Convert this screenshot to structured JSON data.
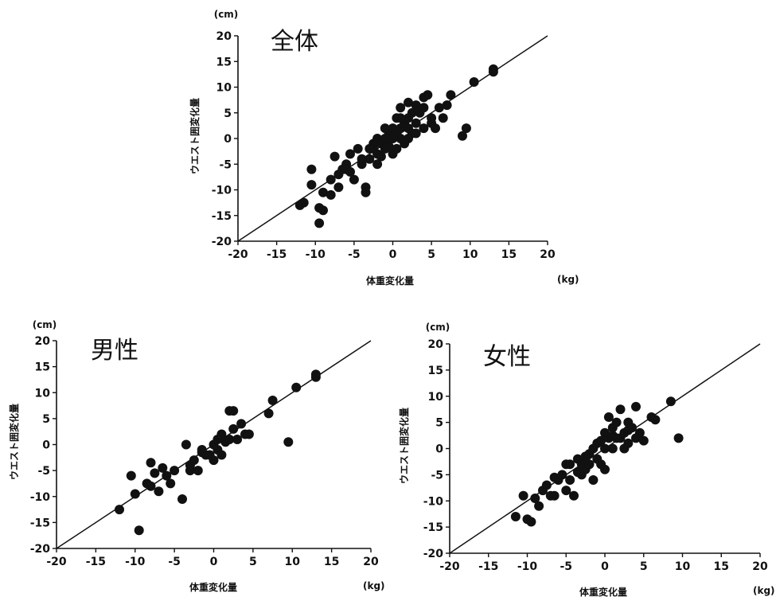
{
  "chart_data": [
    {
      "type": "scatter",
      "title": "全体",
      "xlabel": "体重変化量",
      "ylabel": "ウエスト囲変化量",
      "x_unit": "(kg)",
      "y_unit": "(cm)",
      "xlim": [
        -20,
        20
      ],
      "ylim": [
        -20,
        20
      ],
      "x_ticks": [
        -20,
        -15,
        -10,
        -5,
        0,
        5,
        10,
        15,
        20
      ],
      "y_ticks": [
        -20,
        -15,
        -10,
        -5,
        0,
        5,
        10,
        15,
        20
      ],
      "trend_line": [
        [
          -20,
          -20
        ],
        [
          20,
          20
        ]
      ],
      "marker_color": "#111111",
      "points": [
        [
          -11.5,
          -12.5
        ],
        [
          -12,
          -13
        ],
        [
          -10.5,
          -6
        ],
        [
          -10.5,
          -9
        ],
        [
          -9.5,
          -13.5
        ],
        [
          -9,
          -14
        ],
        [
          -9.5,
          -16.5
        ],
        [
          -9,
          -10.5
        ],
        [
          -8,
          -11
        ],
        [
          -8,
          -8
        ],
        [
          -7.5,
          -3.5
        ],
        [
          -7,
          -9.5
        ],
        [
          -6.5,
          -6
        ],
        [
          -6,
          -5
        ],
        [
          -5.5,
          -3
        ],
        [
          -5,
          -8
        ],
        [
          -4.5,
          -2
        ],
        [
          -4,
          -5
        ],
        [
          -3.5,
          -10.5
        ],
        [
          -3.5,
          -9.5
        ],
        [
          -3,
          -4
        ],
        [
          -2.5,
          -2
        ],
        [
          -2.5,
          -1
        ],
        [
          -2,
          -3
        ],
        [
          -2,
          0
        ],
        [
          -1.5,
          -1
        ],
        [
          -1.5,
          -3.5
        ],
        [
          -1,
          0
        ],
        [
          -1,
          -2
        ],
        [
          -0.5,
          1
        ],
        [
          -0.5,
          -1.5
        ],
        [
          0,
          0
        ],
        [
          0,
          2
        ],
        [
          0,
          -3
        ],
        [
          0.5,
          1
        ],
        [
          0.5,
          4
        ],
        [
          0.5,
          -2
        ],
        [
          1,
          2
        ],
        [
          1,
          6
        ],
        [
          1,
          0
        ],
        [
          1.5,
          3
        ],
        [
          1.5,
          -1
        ],
        [
          2,
          4
        ],
        [
          2,
          7
        ],
        [
          2,
          2
        ],
        [
          2.5,
          5
        ],
        [
          2.5,
          1
        ],
        [
          3,
          3
        ],
        [
          3,
          6.5
        ],
        [
          3.5,
          5
        ],
        [
          4,
          8
        ],
        [
          4,
          2
        ],
        [
          4.5,
          8.5
        ],
        [
          5,
          3
        ],
        [
          5,
          4
        ],
        [
          5.5,
          2
        ],
        [
          6.5,
          4
        ],
        [
          7,
          6.5
        ],
        [
          7.5,
          8.5
        ],
        [
          9.5,
          2
        ],
        [
          9,
          0.5
        ],
        [
          10.5,
          11
        ],
        [
          13,
          13
        ],
        [
          13,
          13.5
        ],
        [
          -6,
          -6
        ],
        [
          -4,
          -4
        ],
        [
          -3,
          -2
        ],
        [
          -1,
          2
        ],
        [
          1,
          4
        ],
        [
          2,
          0
        ],
        [
          3,
          1
        ],
        [
          4,
          6
        ],
        [
          6,
          6
        ],
        [
          -2,
          -5
        ],
        [
          -5.5,
          -6.5
        ],
        [
          -7,
          -7
        ]
      ]
    },
    {
      "type": "scatter",
      "title": "男性",
      "xlabel": "体重変化量",
      "ylabel": "ウエスト囲変化量",
      "x_unit": "(kg)",
      "y_unit": "(cm)",
      "xlim": [
        -20,
        20
      ],
      "ylim": [
        -20,
        20
      ],
      "x_ticks": [
        -20,
        -15,
        -10,
        -5,
        0,
        5,
        10,
        15,
        20
      ],
      "y_ticks": [
        -20,
        -15,
        -10,
        -5,
        0,
        5,
        10,
        15,
        20
      ],
      "trend_line": [
        [
          -20,
          -20
        ],
        [
          20,
          20
        ]
      ],
      "marker_color": "#111111",
      "points": [
        [
          -12,
          -12.5
        ],
        [
          -10.5,
          -6
        ],
        [
          -10,
          -9.5
        ],
        [
          -9.5,
          -16.5
        ],
        [
          -8.5,
          -7.5
        ],
        [
          -8,
          -8
        ],
        [
          -8,
          -3.5
        ],
        [
          -7.5,
          -5.5
        ],
        [
          -7,
          -9
        ],
        [
          -6.5,
          -4.5
        ],
        [
          -6,
          -6
        ],
        [
          -5.5,
          -7.5
        ],
        [
          -5,
          -5
        ],
        [
          -4,
          -10.5
        ],
        [
          -3.5,
          0
        ],
        [
          -3,
          -5
        ],
        [
          -3,
          -4
        ],
        [
          -2.5,
          -3
        ],
        [
          -2,
          -5
        ],
        [
          -1.5,
          -1
        ],
        [
          -1,
          -2
        ],
        [
          -0.5,
          -2
        ],
        [
          0,
          0
        ],
        [
          0,
          -3
        ],
        [
          0.5,
          -1
        ],
        [
          0.5,
          1
        ],
        [
          1,
          2
        ],
        [
          1,
          -2
        ],
        [
          1.5,
          0.5
        ],
        [
          2,
          1
        ],
        [
          2,
          6.5
        ],
        [
          2.5,
          6.5
        ],
        [
          2.5,
          3
        ],
        [
          3,
          1
        ],
        [
          3.5,
          4
        ],
        [
          4,
          2
        ],
        [
          4.5,
          2
        ],
        [
          7,
          6
        ],
        [
          7.5,
          8.5
        ],
        [
          9.5,
          0.5
        ],
        [
          10.5,
          11
        ],
        [
          13,
          13
        ],
        [
          13,
          13.5
        ],
        [
          -1.5,
          -1.5
        ],
        [
          1,
          1.5
        ]
      ]
    },
    {
      "type": "scatter",
      "title": "女性",
      "xlabel": "体重変化量",
      "ylabel": "ウエスト囲変化量",
      "x_unit": "(kg)",
      "y_unit": "(cm)",
      "xlim": [
        -20,
        20
      ],
      "ylim": [
        -20,
        20
      ],
      "x_ticks": [
        -20,
        -15,
        -10,
        -5,
        0,
        5,
        10,
        15,
        20
      ],
      "y_ticks": [
        -20,
        -15,
        -10,
        -5,
        0,
        5,
        10,
        15,
        20
      ],
      "trend_line": [
        [
          -20,
          -20
        ],
        [
          20,
          20
        ]
      ],
      "marker_color": "#111111",
      "points": [
        [
          -11.5,
          -13
        ],
        [
          -10.5,
          -9
        ],
        [
          -10,
          -13.5
        ],
        [
          -9.5,
          -14
        ],
        [
          -9,
          -9.5
        ],
        [
          -8.5,
          -11
        ],
        [
          -8,
          -8
        ],
        [
          -7.5,
          -7
        ],
        [
          -7,
          -9
        ],
        [
          -6.5,
          -5.5
        ],
        [
          -6.5,
          -9
        ],
        [
          -6,
          -6
        ],
        [
          -5.5,
          -5
        ],
        [
          -5,
          -8
        ],
        [
          -5,
          -3
        ],
        [
          -4.5,
          -6
        ],
        [
          -4.5,
          -3
        ],
        [
          -4,
          -9
        ],
        [
          -3.5,
          -2
        ],
        [
          -3,
          -5
        ],
        [
          -3,
          -3
        ],
        [
          -2.5,
          -4
        ],
        [
          -2,
          -1
        ],
        [
          -2,
          -3
        ],
        [
          -1.5,
          0
        ],
        [
          -1.5,
          -6
        ],
        [
          -1,
          -2
        ],
        [
          -1,
          1
        ],
        [
          -0.5,
          -3
        ],
        [
          0,
          3
        ],
        [
          0,
          0
        ],
        [
          0,
          -4
        ],
        [
          0.5,
          2
        ],
        [
          0.5,
          6
        ],
        [
          1,
          4
        ],
        [
          1,
          0
        ],
        [
          1.5,
          2
        ],
        [
          1.5,
          5
        ],
        [
          2,
          7.5
        ],
        [
          2,
          2
        ],
        [
          2.5,
          3
        ],
        [
          3,
          5
        ],
        [
          3,
          1
        ],
        [
          3.5,
          4
        ],
        [
          4,
          8
        ],
        [
          4,
          2
        ],
        [
          4.5,
          3
        ],
        [
          5,
          1.5
        ],
        [
          6,
          6
        ],
        [
          6.5,
          5.5
        ],
        [
          8.5,
          9
        ],
        [
          9.5,
          2
        ],
        [
          -3.5,
          -4.5
        ],
        [
          -0.5,
          1.5
        ],
        [
          2.5,
          0
        ],
        [
          3,
          3.5
        ],
        [
          -2.5,
          -1.5
        ],
        [
          1,
          2.5
        ]
      ]
    }
  ]
}
